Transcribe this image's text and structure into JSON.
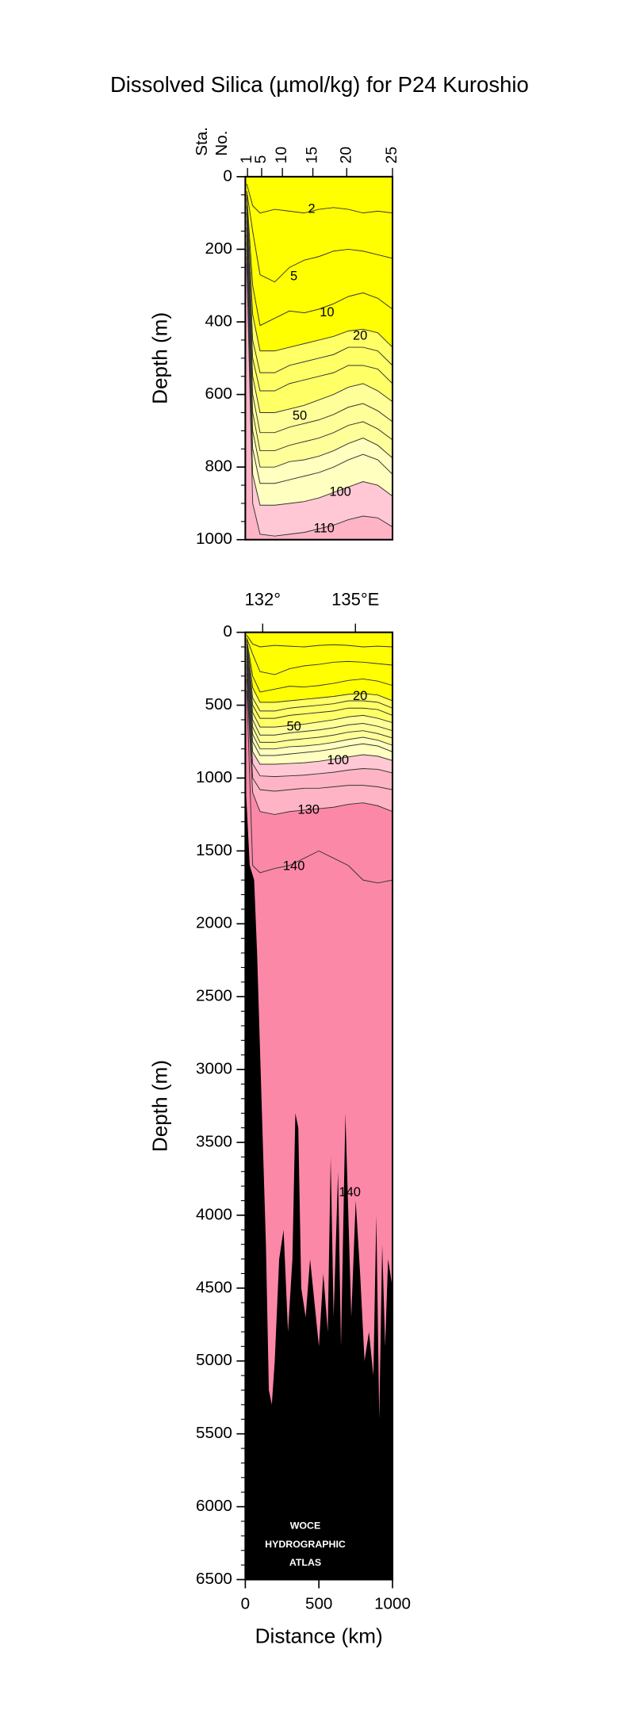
{
  "chart_data": [
    {
      "type": "contour",
      "title": "Dissolved Silica (µmol/kg) for P24 Kuroshio",
      "ylabel": "Depth (m)",
      "station_title": [
        "Sta.",
        "No."
      ],
      "station_ticks": [
        {
          "value": 15,
          "label": "1"
        },
        {
          "value": 111,
          "label": "5"
        },
        {
          "value": 252,
          "label": "10"
        },
        {
          "value": 459,
          "label": "15"
        },
        {
          "value": 689,
          "label": "20"
        },
        {
          "value": 1000,
          "label": "25"
        }
      ],
      "xlim": [
        0,
        1000
      ],
      "ylim": [
        0,
        1000
      ],
      "y_inverted": true,
      "yticks": [
        0,
        200,
        400,
        600,
        800,
        1000
      ],
      "yminor": 50,
      "below_color": "#ffb4c6",
      "x": [
        10,
        50,
        100,
        200,
        300,
        400,
        500,
        600,
        700,
        800,
        900,
        1000
      ],
      "contours": [
        {
          "level": 2,
          "color_above": "#ffff00",
          "depth": [
            20,
            80,
            100,
            90,
            95,
            100,
            90,
            85,
            90,
            100,
            95,
            100
          ]
        },
        {
          "level": 5,
          "color_above": "#ffff00",
          "depth": [
            40,
            150,
            270,
            290,
            250,
            230,
            220,
            205,
            200,
            205,
            215,
            225
          ]
        },
        {
          "level": 10,
          "color_above": "#ffff00",
          "depth": [
            50,
            300,
            410,
            390,
            370,
            375,
            365,
            350,
            330,
            320,
            335,
            365
          ]
        },
        {
          "level": 20,
          "color_above": "#ffff00",
          "depth": [
            60,
            380,
            480,
            480,
            470,
            460,
            450,
            440,
            425,
            420,
            430,
            470
          ]
        },
        {
          "level": 30,
          "color_above": "#ffff66",
          "depth": [
            80,
            450,
            540,
            540,
            520,
            510,
            500,
            490,
            470,
            470,
            480,
            520
          ]
        },
        {
          "level": 40,
          "color_above": "#ffff66",
          "depth": [
            100,
            500,
            590,
            590,
            570,
            560,
            550,
            540,
            520,
            520,
            530,
            570
          ]
        },
        {
          "level": 50,
          "color_above": "#ffff66",
          "depth": [
            120,
            550,
            650,
            650,
            640,
            630,
            615,
            600,
            580,
            570,
            590,
            620
          ]
        },
        {
          "level": 60,
          "color_above": "#ffff99",
          "depth": [
            140,
            600,
            705,
            705,
            690,
            680,
            670,
            655,
            635,
            625,
            645,
            675
          ]
        },
        {
          "level": 70,
          "color_above": "#ffff99",
          "depth": [
            160,
            650,
            755,
            755,
            740,
            730,
            720,
            705,
            685,
            675,
            695,
            725
          ]
        },
        {
          "level": 80,
          "color_above": "#ffff99",
          "depth": [
            180,
            700,
            800,
            800,
            785,
            780,
            770,
            755,
            735,
            720,
            740,
            775
          ]
        },
        {
          "level": 90,
          "color_above": "#ffffc0",
          "depth": [
            200,
            750,
            845,
            845,
            835,
            825,
            815,
            800,
            780,
            765,
            780,
            820
          ]
        },
        {
          "level": 100,
          "color_above": "#ffffc0",
          "depth": [
            220,
            820,
            905,
            905,
            900,
            895,
            885,
            870,
            855,
            840,
            850,
            880
          ]
        },
        {
          "level": 110,
          "color_above": "#ffc8d4",
          "depth": [
            240,
            900,
            985,
            990,
            985,
            980,
            970,
            960,
            945,
            935,
            940,
            965
          ]
        }
      ],
      "contour_labels": [
        {
          "value": 2,
          "x": 450,
          "y": 90
        },
        {
          "value": 5,
          "x": 330,
          "y": 276
        },
        {
          "value": 10,
          "x": 555,
          "y": 375
        },
        {
          "value": 20,
          "x": 780,
          "y": 440
        },
        {
          "value": 50,
          "x": 370,
          "y": 660
        },
        {
          "value": 100,
          "x": 645,
          "y": 870
        },
        {
          "value": 110,
          "x": 535,
          "y": 970
        }
      ]
    },
    {
      "type": "contour",
      "ylabel": "Depth (m)",
      "xlabel": "Distance (km)",
      "lon_ticks": [
        {
          "value": 118,
          "label": "132°"
        },
        {
          "value": 748,
          "label": "135°E"
        }
      ],
      "xlim": [
        0,
        1000
      ],
      "ylim": [
        0,
        6500
      ],
      "y_inverted": true,
      "xticks": [
        0,
        500,
        1000
      ],
      "yticks": [
        0,
        500,
        1000,
        1500,
        2000,
        2500,
        3000,
        3500,
        4000,
        4500,
        5000,
        5500,
        6000,
        6500
      ],
      "yminor": 100,
      "below_color": "#fc88a8",
      "x": [
        10,
        50,
        100,
        200,
        300,
        400,
        500,
        600,
        700,
        800,
        900,
        1000
      ],
      "contours": [
        {
          "level": 2,
          "color_above": "#ffff00",
          "depth": [
            20,
            80,
            100,
            90,
            95,
            100,
            90,
            85,
            90,
            100,
            95,
            100
          ]
        },
        {
          "level": 5,
          "color_above": "#ffff00",
          "depth": [
            40,
            150,
            270,
            290,
            250,
            230,
            220,
            205,
            200,
            205,
            215,
            225
          ]
        },
        {
          "level": 10,
          "color_above": "#ffff00",
          "depth": [
            50,
            300,
            410,
            390,
            370,
            375,
            365,
            350,
            330,
            320,
            335,
            365
          ]
        },
        {
          "level": 20,
          "color_above": "#ffff00",
          "depth": [
            60,
            380,
            480,
            480,
            470,
            460,
            450,
            440,
            425,
            420,
            430,
            470
          ]
        },
        {
          "level": 30,
          "color_above": "#ffff66",
          "depth": [
            80,
            450,
            540,
            540,
            520,
            510,
            500,
            490,
            470,
            470,
            480,
            520
          ]
        },
        {
          "level": 40,
          "color_above": "#ffff66",
          "depth": [
            100,
            500,
            590,
            590,
            570,
            560,
            550,
            540,
            520,
            520,
            530,
            570
          ]
        },
        {
          "level": 50,
          "color_above": "#ffff66",
          "depth": [
            120,
            550,
            650,
            650,
            640,
            630,
            615,
            600,
            580,
            570,
            590,
            620
          ]
        },
        {
          "level": 60,
          "color_above": "#ffff99",
          "depth": [
            140,
            600,
            705,
            705,
            690,
            680,
            670,
            655,
            635,
            625,
            645,
            675
          ]
        },
        {
          "level": 70,
          "color_above": "#ffff99",
          "depth": [
            160,
            650,
            755,
            755,
            740,
            730,
            720,
            705,
            685,
            675,
            695,
            725
          ]
        },
        {
          "level": 80,
          "color_above": "#ffff99",
          "depth": [
            180,
            700,
            800,
            800,
            785,
            780,
            770,
            755,
            735,
            720,
            740,
            775
          ]
        },
        {
          "level": 90,
          "color_above": "#ffffc0",
          "depth": [
            200,
            750,
            845,
            845,
            835,
            825,
            815,
            800,
            780,
            765,
            780,
            820
          ]
        },
        {
          "level": 100,
          "color_above": "#ffffc0",
          "depth": [
            220,
            820,
            905,
            905,
            900,
            895,
            885,
            870,
            855,
            840,
            850,
            880
          ]
        },
        {
          "level": 110,
          "color_above": "#ffc8d4",
          "depth": [
            240,
            900,
            985,
            990,
            985,
            980,
            970,
            960,
            945,
            935,
            940,
            965
          ]
        },
        {
          "level": 120,
          "color_above": "#ffb4c6",
          "depth": [
            280,
            1000,
            1080,
            1090,
            1080,
            1070,
            1070,
            1060,
            1050,
            1050,
            1060,
            1080
          ]
        },
        {
          "level": 130,
          "color_above": "#ffb4c6",
          "depth": [
            320,
            1100,
            1230,
            1250,
            1230,
            1220,
            1210,
            1200,
            1180,
            1170,
            1190,
            1230
          ]
        },
        {
          "level": 140,
          "color_above": "#fc88a8",
          "depth": [
            400,
            1600,
            1650,
            1620,
            1600,
            1550,
            1500,
            1550,
            1600,
            1700,
            1720,
            1700
          ]
        }
      ],
      "contour_labels": [
        {
          "value": 20,
          "x": 780,
          "y": 440
        },
        {
          "value": 50,
          "x": 330,
          "y": 650
        },
        {
          "value": 100,
          "x": 630,
          "y": 880
        },
        {
          "value": 130,
          "x": 430,
          "y": 1220
        },
        {
          "value": 140,
          "x": 330,
          "y": 1608
        },
        {
          "value": 140,
          "x": 710,
          "y": 3845
        }
      ],
      "bathymetry": {
        "color": "#000000",
        "x": [
          0,
          30,
          60,
          80,
          110,
          140,
          160,
          180,
          200,
          230,
          260,
          290,
          320,
          340,
          360,
          380,
          410,
          440,
          470,
          500,
          530,
          560,
          580,
          600,
          630,
          650,
          680,
          700,
          720,
          750,
          780,
          810,
          840,
          870,
          890,
          910,
          930,
          950,
          970,
          1000
        ],
        "depth": [
          1000,
          1600,
          1700,
          2200,
          3200,
          4200,
          5200,
          5300,
          5000,
          4300,
          4100,
          4800,
          4300,
          3300,
          3400,
          4500,
          4700,
          4300,
          4600,
          4900,
          4400,
          4800,
          3600,
          4700,
          3700,
          4900,
          3300,
          4000,
          4700,
          3900,
          4400,
          5000,
          4800,
          5100,
          4000,
          5400,
          4200,
          4900,
          4300,
          4500
        ]
      },
      "annotations": [
        "WOCE",
        "HYDROGRAPHIC",
        "ATLAS"
      ]
    }
  ]
}
